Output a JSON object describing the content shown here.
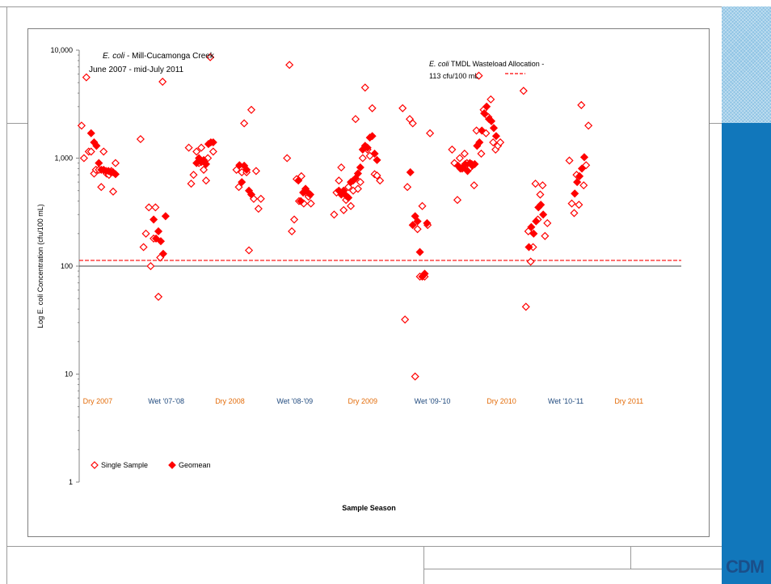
{
  "logo": "CDM",
  "chart_data": {
    "type": "scatter",
    "title": "E. coli - Mill-Cucamonga Creek",
    "title_italic": "E. coli",
    "title_rest": " - Mill-Cucamonga Creek",
    "subtitle": "June 2007 - mid-July 2011",
    "xlabel": "Sample Season",
    "ylabel": "Log E. coli Concentration (cfu/100 mL)",
    "y_scale": "log",
    "ylim": [
      1,
      10000
    ],
    "yticks": [
      "1",
      "10",
      "100",
      "1,000",
      "10,000"
    ],
    "xlim": [
      0,
      1
    ],
    "grid": false,
    "legend_position": "bottom-left",
    "reference_line": {
      "label_italic": "E. coli",
      "label_rest": " TMDL Wasteload Allocation -",
      "label_line2": "113 cfu/100 mL",
      "value": 113
    },
    "baseline": {
      "value": 100
    },
    "seasons": [
      {
        "label": "Dry 2007",
        "color": "#e36c0a"
      },
      {
        "label": "Wet '07-'08",
        "color": "#1f497d"
      },
      {
        "label": "Dry 2008",
        "color": "#e36c0a"
      },
      {
        "label": "Wet '08-'09",
        "color": "#1f497d"
      },
      {
        "label": "Dry 2009",
        "color": "#e36c0a"
      },
      {
        "label": "Wet '09-'10",
        "color": "#1f497d"
      },
      {
        "label": "Dry 2010",
        "color": "#e36c0a"
      },
      {
        "label": "Wet '10-'11",
        "color": "#1f497d"
      },
      {
        "label": "Dry 2011",
        "color": "#e36c0a"
      }
    ],
    "marker_color": "#ff0000",
    "series": [
      {
        "name": "Single Sample",
        "marker": "open-diamond",
        "points": [
          [
            0.004,
            2000
          ],
          [
            0.008,
            1000
          ],
          [
            0.012,
            5600
          ],
          [
            0.016,
            1150
          ],
          [
            0.02,
            1150
          ],
          [
            0.025,
            720
          ],
          [
            0.028,
            780
          ],
          [
            0.033,
            780
          ],
          [
            0.037,
            540
          ],
          [
            0.041,
            1150
          ],
          [
            0.046,
            720
          ],
          [
            0.05,
            700
          ],
          [
            0.054,
            760
          ],
          [
            0.057,
            490
          ],
          [
            0.061,
            900
          ],
          [
            0.103,
            1500
          ],
          [
            0.108,
            150
          ],
          [
            0.112,
            200
          ],
          [
            0.117,
            350
          ],
          [
            0.12,
            100
          ],
          [
            0.125,
            180
          ],
          [
            0.128,
            350
          ],
          [
            0.133,
            52
          ],
          [
            0.136,
            120
          ],
          [
            0.14,
            5100
          ],
          [
            0.184,
            1250
          ],
          [
            0.188,
            580
          ],
          [
            0.192,
            700
          ],
          [
            0.197,
            1150
          ],
          [
            0.201,
            900
          ],
          [
            0.205,
            1250
          ],
          [
            0.209,
            780
          ],
          [
            0.213,
            620
          ],
          [
            0.216,
            1000
          ],
          [
            0.22,
            8600
          ],
          [
            0.225,
            1150
          ],
          [
            0.264,
            780
          ],
          [
            0.268,
            540
          ],
          [
            0.273,
            740
          ],
          [
            0.277,
            2100
          ],
          [
            0.281,
            740
          ],
          [
            0.285,
            140
          ],
          [
            0.289,
            2800
          ],
          [
            0.293,
            420
          ],
          [
            0.297,
            760
          ],
          [
            0.301,
            340
          ],
          [
            0.305,
            420
          ],
          [
            0.349,
            1000
          ],
          [
            0.353,
            7300
          ],
          [
            0.357,
            210
          ],
          [
            0.361,
            270
          ],
          [
            0.365,
            640
          ],
          [
            0.369,
            400
          ],
          [
            0.373,
            680
          ],
          [
            0.377,
            380
          ],
          [
            0.381,
            480
          ],
          [
            0.385,
            440
          ],
          [
            0.389,
            380
          ],
          [
            0.428,
            300
          ],
          [
            0.432,
            480
          ],
          [
            0.436,
            620
          ],
          [
            0.44,
            820
          ],
          [
            0.444,
            330
          ],
          [
            0.448,
            410
          ],
          [
            0.452,
            540
          ],
          [
            0.456,
            360
          ],
          [
            0.46,
            500
          ],
          [
            0.464,
            2300
          ],
          [
            0.468,
            520
          ],
          [
            0.472,
            600
          ],
          [
            0.476,
            1000
          ],
          [
            0.48,
            4500
          ],
          [
            0.484,
            1200
          ],
          [
            0.488,
            1050
          ],
          [
            0.492,
            2900
          ],
          [
            0.496,
            710
          ],
          [
            0.5,
            690
          ],
          [
            0.505,
            620
          ],
          [
            0.543,
            2900
          ],
          [
            0.547,
            32
          ],
          [
            0.551,
            540
          ],
          [
            0.555,
            2300
          ],
          [
            0.56,
            2100
          ],
          [
            0.564,
            9.5
          ],
          [
            0.568,
            220
          ],
          [
            0.572,
            80
          ],
          [
            0.576,
            360
          ],
          [
            0.58,
            80
          ],
          [
            0.585,
            240
          ],
          [
            0.589,
            1700
          ],
          [
            0.626,
            1200
          ],
          [
            0.63,
            900
          ],
          [
            0.635,
            410
          ],
          [
            0.639,
            1000
          ],
          [
            0.643,
            800
          ],
          [
            0.647,
            1100
          ],
          [
            0.651,
            900
          ],
          [
            0.655,
            800
          ],
          [
            0.659,
            880
          ],
          [
            0.663,
            560
          ],
          [
            0.667,
            1800
          ],
          [
            0.671,
            5800
          ],
          [
            0.675,
            1100
          ],
          [
            0.679,
            2800
          ],
          [
            0.683,
            1700
          ],
          [
            0.687,
            2400
          ],
          [
            0.691,
            3500
          ],
          [
            0.695,
            1400
          ],
          [
            0.699,
            1200
          ],
          [
            0.703,
            1300
          ],
          [
            0.707,
            1400
          ],
          [
            0.746,
            4200
          ],
          [
            0.75,
            42
          ],
          [
            0.754,
            210
          ],
          [
            0.758,
            110
          ],
          [
            0.762,
            150
          ],
          [
            0.766,
            580
          ],
          [
            0.77,
            270
          ],
          [
            0.774,
            460
          ],
          [
            0.778,
            560
          ],
          [
            0.782,
            190
          ],
          [
            0.786,
            250
          ],
          [
            0.823,
            950
          ],
          [
            0.827,
            380
          ],
          [
            0.831,
            310
          ],
          [
            0.835,
            700
          ],
          [
            0.839,
            370
          ],
          [
            0.843,
            3100
          ],
          [
            0.847,
            560
          ],
          [
            0.851,
            860
          ],
          [
            0.855,
            2000
          ]
        ]
      },
      {
        "name": "Geomean",
        "marker": "filled-diamond",
        "points": [
          [
            0.02,
            1700
          ],
          [
            0.025,
            1400
          ],
          [
            0.029,
            1300
          ],
          [
            0.033,
            900
          ],
          [
            0.037,
            780
          ],
          [
            0.041,
            780
          ],
          [
            0.045,
            760
          ],
          [
            0.049,
            760
          ],
          [
            0.053,
            740
          ],
          [
            0.057,
            740
          ],
          [
            0.061,
            710
          ],
          [
            0.125,
            270
          ],
          [
            0.129,
            180
          ],
          [
            0.133,
            210
          ],
          [
            0.137,
            170
          ],
          [
            0.141,
            130
          ],
          [
            0.145,
            290
          ],
          [
            0.197,
            900
          ],
          [
            0.201,
            1000
          ],
          [
            0.205,
            920
          ],
          [
            0.209,
            960
          ],
          [
            0.213,
            880
          ],
          [
            0.217,
            1350
          ],
          [
            0.221,
            1400
          ],
          [
            0.225,
            1400
          ],
          [
            0.269,
            860
          ],
          [
            0.273,
            600
          ],
          [
            0.277,
            850
          ],
          [
            0.281,
            780
          ],
          [
            0.285,
            500
          ],
          [
            0.289,
            460
          ],
          [
            0.368,
            620
          ],
          [
            0.372,
            400
          ],
          [
            0.376,
            480
          ],
          [
            0.38,
            520
          ],
          [
            0.384,
            480
          ],
          [
            0.388,
            460
          ],
          [
            0.436,
            500
          ],
          [
            0.44,
            460
          ],
          [
            0.444,
            500
          ],
          [
            0.448,
            450
          ],
          [
            0.452,
            430
          ],
          [
            0.456,
            600
          ],
          [
            0.46,
            620
          ],
          [
            0.464,
            650
          ],
          [
            0.468,
            720
          ],
          [
            0.472,
            820
          ],
          [
            0.476,
            1200
          ],
          [
            0.48,
            1300
          ],
          [
            0.484,
            1250
          ],
          [
            0.488,
            1550
          ],
          [
            0.492,
            1600
          ],
          [
            0.496,
            1100
          ],
          [
            0.5,
            960
          ],
          [
            0.556,
            740
          ],
          [
            0.56,
            240
          ],
          [
            0.564,
            290
          ],
          [
            0.568,
            260
          ],
          [
            0.572,
            135
          ],
          [
            0.576,
            80
          ],
          [
            0.58,
            85
          ],
          [
            0.584,
            250
          ],
          [
            0.636,
            850
          ],
          [
            0.64,
            800
          ],
          [
            0.644,
            820
          ],
          [
            0.648,
            880
          ],
          [
            0.652,
            760
          ],
          [
            0.656,
            900
          ],
          [
            0.66,
            850
          ],
          [
            0.664,
            880
          ],
          [
            0.668,
            1300
          ],
          [
            0.672,
            1400
          ],
          [
            0.676,
            1800
          ],
          [
            0.68,
            2600
          ],
          [
            0.684,
            3000
          ],
          [
            0.688,
            2300
          ],
          [
            0.692,
            2200
          ],
          [
            0.696,
            1900
          ],
          [
            0.7,
            1600
          ],
          [
            0.755,
            150
          ],
          [
            0.759,
            230
          ],
          [
            0.763,
            200
          ],
          [
            0.767,
            260
          ],
          [
            0.771,
            350
          ],
          [
            0.775,
            370
          ],
          [
            0.779,
            300
          ],
          [
            0.832,
            470
          ],
          [
            0.836,
            600
          ],
          [
            0.84,
            680
          ],
          [
            0.844,
            800
          ],
          [
            0.848,
            1020
          ]
        ]
      }
    ]
  }
}
